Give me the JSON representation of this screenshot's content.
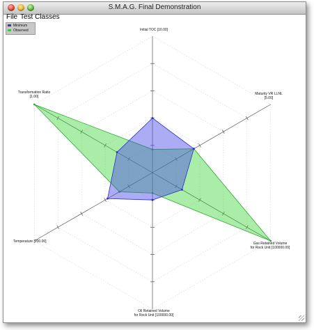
{
  "window": {
    "title": "S.M.A.G. Final Demonstration"
  },
  "menu": {
    "items": [
      "File",
      "Test Classes"
    ]
  },
  "legend": [
    {
      "label": "Minimum",
      "color": "#3333cc"
    },
    {
      "label": "Observed",
      "color": "#33cc33"
    }
  ],
  "chart_data": {
    "type": "radar",
    "max": 1,
    "ticks": [
      0.2,
      0.4,
      0.6,
      0.8
    ],
    "axes": [
      {
        "label_lines": [
          "Initial TOC [10.00]"
        ]
      },
      {
        "label_lines": [
          "Maturity VR LLNL",
          "[5.00]"
        ]
      },
      {
        "label_lines": [
          "Gas Retained Volume",
          "for Rock Unit [100000.00]"
        ]
      },
      {
        "label_lines": [
          "Oil Retained Volume",
          "for Rock Unit [100000.00]"
        ]
      },
      {
        "label_lines": [
          "Temperature [200.00]"
        ]
      },
      {
        "label_lines": [
          "Transformation Ratio",
          "[1.00]"
        ]
      }
    ],
    "series": [
      {
        "name": "Minimum",
        "values": [
          0.4,
          0.35,
          0.25,
          0.2,
          0.38,
          0.3
        ],
        "stroke": "#2a2acc",
        "fill": "rgba(70,70,230,0.45)"
      },
      {
        "name": "Observed",
        "values": [
          0.17,
          0.35,
          1.0,
          0.15,
          0.28,
          1.0
        ],
        "stroke": "#2ea82e",
        "fill": "rgba(40,210,40,0.4)"
      }
    ]
  }
}
